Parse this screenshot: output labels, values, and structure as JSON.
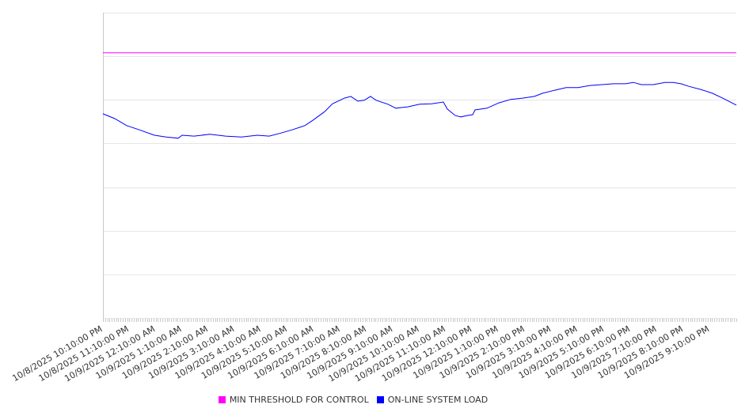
{
  "chart_data": {
    "type": "line",
    "title": "",
    "xlabel": "",
    "ylabel": "",
    "ylim": [
      0,
      700
    ],
    "y_grid_step": 100,
    "grid": true,
    "y_tick_labels_visible": false,
    "xlim_hours": [
      0,
      24
    ],
    "x_tick_labels": [
      "10/8/2025 10:10:00 PM",
      "10/8/2025 11:10:00 PM",
      "10/9/2025 12:10:00 AM",
      "10/9/2025 1:10:00 AM",
      "10/9/2025 2:10:00 AM",
      "10/9/2025 3:10:00 AM",
      "10/9/2025 4:10:00 AM",
      "10/9/2025 5:10:00 AM",
      "10/9/2025 6:10:00 AM",
      "10/9/2025 7:10:00 AM",
      "10/9/2025 8:10:00 AM",
      "10/9/2025 9:10:00 AM",
      "10/9/2025 10:10:00 AM",
      "10/9/2025 11:10:00 AM",
      "10/9/2025 12:10:00 PM",
      "10/9/2025 1:10:00 PM",
      "10/9/2025 2:10:00 PM",
      "10/9/2025 3:10:00 PM",
      "10/9/2025 4:10:00 PM",
      "10/9/2025 5:10:00 PM",
      "10/9/2025 6:10:00 PM",
      "10/9/2025 7:10:00 PM",
      "10/9/2025 8:10:00 PM",
      "10/9/2025 9:10:00 PM"
    ],
    "legend_position": "bottom",
    "series": [
      {
        "name": "MIN THRESHOLD FOR CONTROL",
        "color": "#ff00ff",
        "x": [
          0,
          24
        ],
        "values": [
          608,
          608
        ]
      },
      {
        "name": "ON-LINE SYSTEM LOAD",
        "color": "#0000ff",
        "x": [
          0,
          0.45,
          0.9,
          1.35,
          1.95,
          2.4,
          2.85,
          3.0,
          3.45,
          4.05,
          4.65,
          5.25,
          5.85,
          6.3,
          6.75,
          7.2,
          7.65,
          7.95,
          8.4,
          8.7,
          9.15,
          9.39,
          9.66,
          9.9,
          10.14,
          10.35,
          10.8,
          11.1,
          11.55,
          12.0,
          12.45,
          12.9,
          13.05,
          13.35,
          13.56,
          13.8,
          14.01,
          14.1,
          14.55,
          15.0,
          15.45,
          15.9,
          16.35,
          16.65,
          17.1,
          17.55,
          18.0,
          18.45,
          18.9,
          19.35,
          19.8,
          20.1,
          20.4,
          20.85,
          21.3,
          21.6,
          21.9,
          22.2,
          22.65,
          23.1,
          23.55,
          24.0
        ],
        "values": [
          468,
          457,
          441,
          432,
          419,
          415,
          412,
          419,
          417,
          421,
          417,
          415,
          419,
          417,
          424,
          432,
          441,
          453,
          473,
          491,
          504,
          508,
          497,
          499,
          508,
          499,
          490,
          481,
          484,
          490,
          491,
          495,
          479,
          464,
          461,
          464,
          466,
          477,
          481,
          493,
          501,
          504,
          508,
          515,
          522,
          528,
          528,
          533,
          535,
          537,
          537,
          540,
          535,
          535,
          540,
          540,
          537,
          531,
          524,
          515,
          502,
          488
        ]
      }
    ]
  }
}
